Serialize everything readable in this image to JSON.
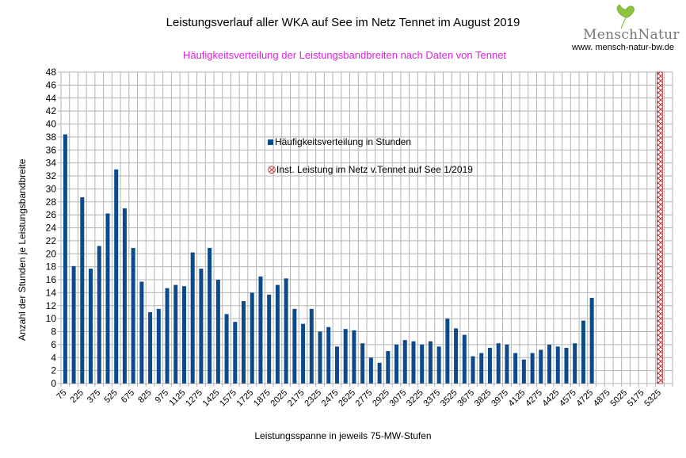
{
  "header": {
    "title": "Leistungsverlauf aller WKA auf See im Netz Tennet im August 2019",
    "subtitle": "Häufigkeitsverteilung der Leistungsbandbreiten nach Daten von Tennet"
  },
  "logo": {
    "name": "MenschNatur",
    "url": "www. mensch-natur-bw.de"
  },
  "colors": {
    "bar": "#0b4a8b",
    "installed": "#b33a3a",
    "subtitle": "#dd22dd",
    "grid": "#b3b3b3"
  },
  "chart_data": {
    "type": "bar",
    "title": "Leistungsverlauf aller WKA auf See im Netz Tennet im August 2019",
    "subtitle": "Häufigkeitsverteilung der Leistungsbandbreiten nach Daten von Tennet",
    "xlabel": "Leistungsspanne in jeweils 75-MW-Stufen",
    "ylabel": "Anzahl der Stunden je Leistungsbandbreite",
    "ylim": [
      0,
      48
    ],
    "ytick_step": 2,
    "grid": true,
    "legend_position": "center",
    "categories": [
      75,
      150,
      225,
      300,
      375,
      450,
      525,
      600,
      675,
      750,
      825,
      900,
      975,
      1050,
      1125,
      1200,
      1275,
      1350,
      1425,
      1500,
      1575,
      1650,
      1725,
      1800,
      1875,
      1950,
      2025,
      2100,
      2175,
      2250,
      2325,
      2400,
      2475,
      2550,
      2625,
      2700,
      2775,
      2850,
      2925,
      3000,
      3075,
      3150,
      3225,
      3300,
      3375,
      3450,
      3525,
      3600,
      3675,
      3750,
      3825,
      3900,
      3975,
      4050,
      4125,
      4200,
      4275,
      4350,
      4425,
      4500,
      4575,
      4650,
      4725,
      4800,
      4875,
      4950,
      5025,
      5100,
      5175,
      5250,
      5325,
      5400
    ],
    "tick_labels": [
      "75",
      "225",
      "375",
      "525",
      "675",
      "825",
      "975",
      "1125",
      "1275",
      "1425",
      "1575",
      "1725",
      "1875",
      "2025",
      "2175",
      "2325",
      "2475",
      "2625",
      "2775",
      "2925",
      "3075",
      "3225",
      "3375",
      "3525",
      "3675",
      "3825",
      "3975",
      "4125",
      "4275",
      "4425",
      "4575",
      "4725",
      "4875",
      "5025",
      "5175",
      "5325"
    ],
    "series": [
      {
        "name": "Häufigkeitsverteilung in Stunden",
        "values": [
          38.4,
          18.1,
          28.7,
          17.7,
          21.2,
          26.2,
          33,
          27,
          20.9,
          15.7,
          11,
          11.5,
          14.7,
          15.2,
          15,
          20.2,
          17.7,
          20.9,
          16,
          10.7,
          9.5,
          12.7,
          14,
          16.5,
          13.7,
          15.2,
          16.2,
          11.5,
          9.2,
          11.5,
          8,
          8.7,
          5.7,
          8.4,
          8.2,
          6.2,
          4,
          3.2,
          5,
          6,
          6.7,
          6.5,
          6,
          6.5,
          5.7,
          10,
          8.5,
          7.5,
          4.2,
          4.7,
          5.5,
          6.2,
          6,
          4.7,
          3.7,
          4.7,
          5.2,
          6,
          5.7,
          5.5,
          6.2,
          9.7,
          13.2,
          0,
          0,
          0,
          0,
          0,
          0,
          0,
          0,
          0
        ]
      },
      {
        "name": "Inst. Leistung im Netz v.Tennet auf See 1/2019",
        "category": 5325,
        "value": 48
      }
    ]
  }
}
